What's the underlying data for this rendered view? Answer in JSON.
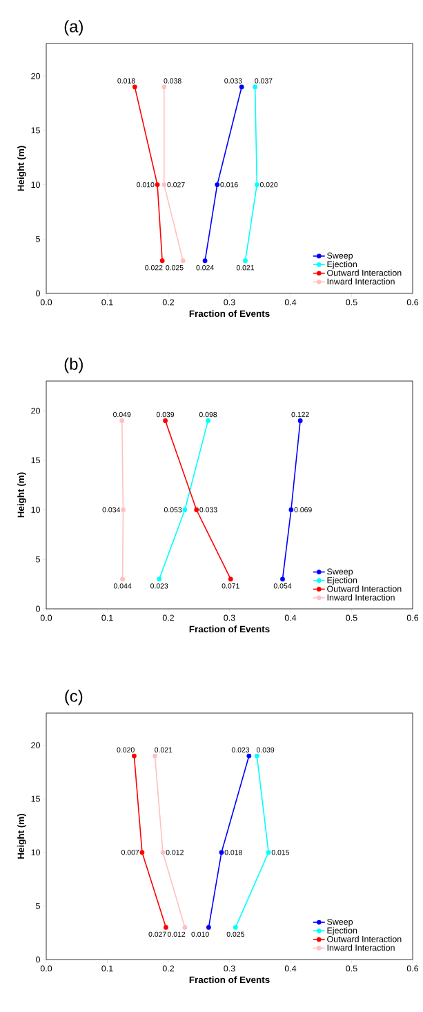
{
  "chart_data": [
    {
      "type": "line",
      "title": "(a)",
      "xlabel": "Fraction of Events",
      "ylabel": "Height (m)",
      "xlim": [
        0,
        0.6
      ],
      "ylim": [
        0,
        23
      ],
      "xticks": [
        {
          "value": 0,
          "label": "0.0"
        },
        {
          "value": 0.1,
          "label": "0.1"
        },
        {
          "value": 0.2,
          "label": "0.2"
        },
        {
          "value": 0.3,
          "label": "0.3"
        },
        {
          "value": 0.4,
          "label": "0.4"
        },
        {
          "value": 0.5,
          "label": "0.5"
        },
        {
          "value": 0.6,
          "label": "0.6"
        }
      ],
      "yticks": [
        0,
        5,
        10,
        15,
        20
      ],
      "marker": "circle",
      "line_style": "solid",
      "legend": "bottom right",
      "grid": false,
      "series": [
        {
          "name": "Sweep",
          "color": "#0000ff",
          "x": [
            0.32,
            0.28,
            0.26
          ],
          "values": [
            19,
            10,
            3
          ]
        },
        {
          "name": "Ejection",
          "color": "#00ffff",
          "x": [
            0.342,
            0.345,
            0.326
          ],
          "values": [
            19,
            10,
            3
          ]
        },
        {
          "name": "Outward Interaction",
          "color": "#ff0000",
          "x": [
            0.145,
            0.182,
            0.19
          ],
          "values": [
            19,
            10,
            3
          ]
        },
        {
          "name": "Inward Interaction",
          "color": "#ffc0c0",
          "x": [
            0.193,
            0.193,
            0.224
          ],
          "values": [
            19,
            10,
            3
          ]
        }
      ],
      "annotations": [
        {
          "text": "0.033",
          "x": 0.32,
          "y": 19
        },
        {
          "text": "0.016",
          "x": 0.28,
          "y": 10
        },
        {
          "text": "0.024",
          "x": 0.26,
          "y": 3
        },
        {
          "text": "0.037",
          "x": 0.342,
          "y": 19
        },
        {
          "text": "0.020",
          "x": 0.345,
          "y": 10
        },
        {
          "text": "0.021",
          "x": 0.326,
          "y": 3
        },
        {
          "text": "0.018",
          "x": 0.145,
          "y": 19
        },
        {
          "text": "0.010",
          "x": 0.182,
          "y": 10
        },
        {
          "text": "0.022",
          "x": 0.19,
          "y": 3
        },
        {
          "text": "0.038",
          "x": 0.193,
          "y": 19
        },
        {
          "text": "0.027",
          "x": 0.193,
          "y": 10
        },
        {
          "text": "0.025",
          "x": 0.224,
          "y": 3
        }
      ]
    },
    {
      "type": "line",
      "title": "(b)",
      "xlabel": "Fraction of Events",
      "ylabel": "Height (m)",
      "xlim": [
        0,
        0.6
      ],
      "ylim": [
        0,
        23
      ],
      "xticks": [
        {
          "value": 0,
          "label": "0.0"
        },
        {
          "value": 0.1,
          "label": "0.1"
        },
        {
          "value": 0.2,
          "label": "0.2"
        },
        {
          "value": 0.3,
          "label": "0.3"
        },
        {
          "value": 0.4,
          "label": "0.4"
        },
        {
          "value": 0.5,
          "label": "0.5"
        },
        {
          "value": 0.6,
          "label": "0.6"
        }
      ],
      "yticks": [
        0,
        5,
        10,
        15,
        20
      ],
      "marker": "circle",
      "line_style": "solid",
      "legend": "bottom right",
      "grid": false,
      "series": [
        {
          "name": "Sweep",
          "color": "#0000ff",
          "x": [
            0.416,
            0.401,
            0.387
          ],
          "values": [
            19,
            10,
            3
          ]
        },
        {
          "name": "Ejection",
          "color": "#00ffff",
          "x": [
            0.265,
            0.227,
            0.185
          ],
          "values": [
            19,
            10,
            3
          ]
        },
        {
          "name": "Outward Interaction",
          "color": "#ff0000",
          "x": [
            0.195,
            0.246,
            0.302
          ],
          "values": [
            19,
            10,
            3
          ]
        },
        {
          "name": "Inward Interaction",
          "color": "#ffc0c0",
          "x": [
            0.124,
            0.126,
            0.125
          ],
          "values": [
            19,
            10,
            3
          ]
        }
      ],
      "annotations": [
        {
          "text": "0.122",
          "x": 0.416,
          "y": 19
        },
        {
          "text": "0.069",
          "x": 0.401,
          "y": 10
        },
        {
          "text": "0.054",
          "x": 0.387,
          "y": 3
        },
        {
          "text": "0.098",
          "x": 0.265,
          "y": 19
        },
        {
          "text": "0.053",
          "x": 0.227,
          "y": 10
        },
        {
          "text": "0.023",
          "x": 0.185,
          "y": 3
        },
        {
          "text": "0.039",
          "x": 0.195,
          "y": 19
        },
        {
          "text": "0.033",
          "x": 0.246,
          "y": 10
        },
        {
          "text": "0.071",
          "x": 0.302,
          "y": 3
        },
        {
          "text": "0.049",
          "x": 0.124,
          "y": 19
        },
        {
          "text": "0.034",
          "x": 0.126,
          "y": 10
        },
        {
          "text": "0.044",
          "x": 0.125,
          "y": 3
        }
      ]
    },
    {
      "type": "line",
      "title": "(c)",
      "xlabel": "Fraction of Events",
      "ylabel": "Height (m)",
      "xlim": [
        0,
        0.6
      ],
      "ylim": [
        0,
        23
      ],
      "xticks": [
        {
          "value": 0,
          "label": "0.0"
        },
        {
          "value": 0.1,
          "label": "0.1"
        },
        {
          "value": 0.2,
          "label": "0.2"
        },
        {
          "value": 0.3,
          "label": "0.3"
        },
        {
          "value": 0.4,
          "label": "0.4"
        },
        {
          "value": 0.5,
          "label": "0.5"
        },
        {
          "value": 0.6,
          "label": "0.6"
        }
      ],
      "yticks": [
        0,
        5,
        10,
        15,
        20
      ],
      "marker": "circle",
      "line_style": "solid",
      "legend": "bottom right",
      "grid": false,
      "series": [
        {
          "name": "Sweep",
          "color": "#0000ff",
          "x": [
            0.332,
            0.287,
            0.266
          ],
          "values": [
            19,
            10,
            3
          ]
        },
        {
          "name": "Ejection",
          "color": "#00ffff",
          "x": [
            0.345,
            0.364,
            0.31
          ],
          "values": [
            19,
            10,
            3
          ]
        },
        {
          "name": "Outward Interaction",
          "color": "#ff0000",
          "x": [
            0.144,
            0.157,
            0.196
          ],
          "values": [
            19,
            10,
            3
          ]
        },
        {
          "name": "Inward Interaction",
          "color": "#ffc0c0",
          "x": [
            0.178,
            0.191,
            0.227
          ],
          "values": [
            19,
            10,
            3
          ]
        }
      ],
      "annotations": [
        {
          "text": "0.023",
          "x": 0.332,
          "y": 19
        },
        {
          "text": "0.018",
          "x": 0.287,
          "y": 10
        },
        {
          "text": "0.010",
          "x": 0.266,
          "y": 3
        },
        {
          "text": "0.039",
          "x": 0.345,
          "y": 19
        },
        {
          "text": "0.015",
          "x": 0.364,
          "y": 10
        },
        {
          "text": "0.025",
          "x": 0.31,
          "y": 3
        },
        {
          "text": "0.020",
          "x": 0.144,
          "y": 19
        },
        {
          "text": "0.007",
          "x": 0.157,
          "y": 10
        },
        {
          "text": "0.027",
          "x": 0.196,
          "y": 3
        },
        {
          "text": "0.021",
          "x": 0.178,
          "y": 19
        },
        {
          "text": "0.012",
          "x": 0.191,
          "y": 10
        },
        {
          "text": "0.012",
          "x": 0.227,
          "y": 3
        }
      ]
    }
  ]
}
